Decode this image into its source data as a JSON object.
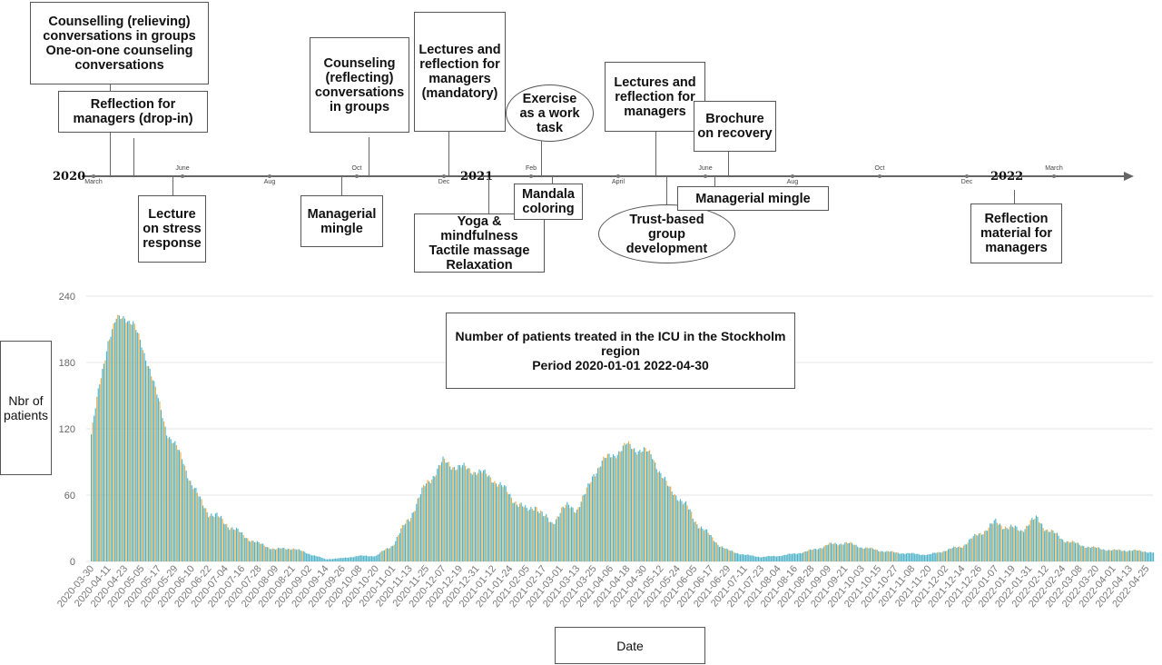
{
  "timeline": {
    "years": [
      {
        "label": "2020",
        "x": 0,
        "y": 0
      },
      {
        "label": "2021"
      },
      {
        "label": "2022"
      }
    ],
    "months": [
      "March",
      "June",
      "Aug",
      "Oct",
      "Dec",
      "Feb",
      "April",
      "June",
      "Aug",
      "Oct",
      "Dec",
      "March"
    ],
    "events_above": [
      "Counselling (relieving)\nconversations in groups\nOne-on-one counseling\nconversations",
      "Reflection for\nmanagers (drop-in)",
      "Counseling\n(reflecting)\nconversations\nin groups",
      "Lectures and\nreflection for\nmanagers\n(mandatory)",
      "Exercise\nas a work\ntask",
      "Lectures and\nreflection for\nmanagers",
      "Brochure\non recovery"
    ],
    "events_below": [
      "Lecture\non stress\nresponse",
      "Managerial\nmingle",
      "Yoga & mindfulness\nTactile massage\nRelaxation",
      "Mandala\ncoloring",
      "Trust-based\ngroup\ndevelopment",
      "Managerial mingle",
      "Reflection\nmaterial for\nmanagers"
    ]
  },
  "chart_data": {
    "type": "bar",
    "title": "Number of patients treated in the ICU in the Stockholm region\nPeriod 2020-01-01 2022-04-30",
    "xlabel": "Date",
    "ylabel": "Nbr of\npatients",
    "ylim": [
      0,
      240
    ],
    "yticks": [
      0,
      60,
      120,
      180,
      240
    ],
    "x_start": "2020-03-30",
    "x_end": "2022-04-30",
    "x_tick_labels": [
      "2020-03-30",
      "2020-04-11",
      "2020-04-23",
      "2020-05-05",
      "2020-05-17",
      "2020-05-29",
      "2020-06-10",
      "2020-06-22",
      "2020-07-04",
      "2020-07-16",
      "2020-07-28",
      "2020-08-09",
      "2020-08-21",
      "2020-09-02",
      "2020-09-14",
      "2020-09-26",
      "2020-10-08",
      "2020-10-20",
      "2020-11-01",
      "2020-11-13",
      "2020-11-25",
      "2020-12-07",
      "2020-12-19",
      "2020-12-31",
      "2021-01-12",
      "2021-01-24",
      "2021-02-05",
      "2021-02-17",
      "2021-03-01",
      "2021-03-13",
      "2021-03-25",
      "2021-04-06",
      "2021-04-18",
      "2021-04-30",
      "2021-05-12",
      "2021-05-24",
      "2021-06-05",
      "2021-06-17",
      "2021-06-29",
      "2021-07-11",
      "2021-07-23",
      "2021-08-04",
      "2021-08-16",
      "2021-08-28",
      "2021-09-09",
      "2021-09-21",
      "2021-10-03",
      "2021-10-15",
      "2021-10-27",
      "2021-11-08",
      "2021-11-20",
      "2021-12-02",
      "2021-12-14",
      "2021-12-26",
      "2022-01-07",
      "2022-01-19",
      "2022-01-31",
      "2022-02-12",
      "2022-02-24",
      "2022-03-08",
      "2022-03-20",
      "2022-04-01",
      "2022-04-13",
      "2022-04-25"
    ],
    "series_anchors": {
      "dates": [
        "2020-03-30",
        "2020-04-05",
        "2020-04-11",
        "2020-04-17",
        "2020-04-23",
        "2020-04-29",
        "2020-05-05",
        "2020-05-11",
        "2020-05-17",
        "2020-05-23",
        "2020-05-29",
        "2020-06-04",
        "2020-06-10",
        "2020-06-16",
        "2020-06-22",
        "2020-06-28",
        "2020-07-04",
        "2020-07-10",
        "2020-07-16",
        "2020-07-22",
        "2020-07-28",
        "2020-08-09",
        "2020-08-21",
        "2020-09-02",
        "2020-09-14",
        "2020-09-26",
        "2020-10-08",
        "2020-10-20",
        "2020-11-01",
        "2020-11-13",
        "2020-11-25",
        "2020-12-07",
        "2020-12-19",
        "2020-12-31",
        "2021-01-12",
        "2021-01-24",
        "2021-02-05",
        "2021-02-11",
        "2021-02-17",
        "2021-02-23",
        "2021-03-01",
        "2021-03-07",
        "2021-03-13",
        "2021-03-19",
        "2021-03-25",
        "2021-03-31",
        "2021-04-06",
        "2021-04-12",
        "2021-04-18",
        "2021-04-24",
        "2021-04-30",
        "2021-05-06",
        "2021-05-12",
        "2021-05-18",
        "2021-05-24",
        "2021-05-30",
        "2021-06-05",
        "2021-06-11",
        "2021-06-17",
        "2021-06-23",
        "2021-06-29",
        "2021-07-11",
        "2021-07-23",
        "2021-08-04",
        "2021-08-16",
        "2021-08-28",
        "2021-09-09",
        "2021-09-21",
        "2021-10-03",
        "2021-10-15",
        "2021-10-27",
        "2021-11-08",
        "2021-11-20",
        "2021-12-02",
        "2021-12-14",
        "2021-12-26",
        "2022-01-07",
        "2022-01-19",
        "2022-01-25",
        "2022-01-31",
        "2022-02-06",
        "2022-02-12",
        "2022-02-24",
        "2022-03-08",
        "2022-03-20",
        "2022-04-01",
        "2022-04-13",
        "2022-04-25",
        "2022-04-30"
      ],
      "values": [
        115,
        160,
        200,
        218,
        222,
        215,
        195,
        175,
        145,
        118,
        105,
        90,
        70,
        55,
        45,
        40,
        35,
        30,
        24,
        20,
        16,
        11,
        12,
        7,
        2,
        3,
        5,
        5,
        15,
        40,
        70,
        90,
        85,
        82,
        75,
        60,
        45,
        52,
        40,
        35,
        45,
        50,
        48,
        60,
        80,
        90,
        95,
        100,
        105,
        102,
        100,
        95,
        80,
        65,
        60,
        50,
        38,
        30,
        22,
        15,
        10,
        6,
        4,
        5,
        7,
        10,
        15,
        17,
        13,
        10,
        8,
        7,
        6,
        10,
        14,
        25,
        35,
        30,
        28,
        35,
        38,
        30,
        20,
        15,
        12,
        10,
        10,
        9,
        8
      ]
    },
    "series": [
      {
        "name": "",
        "color": "#4fb3c8"
      },
      {
        "name": "",
        "color": "#f0a93a"
      }
    ]
  }
}
